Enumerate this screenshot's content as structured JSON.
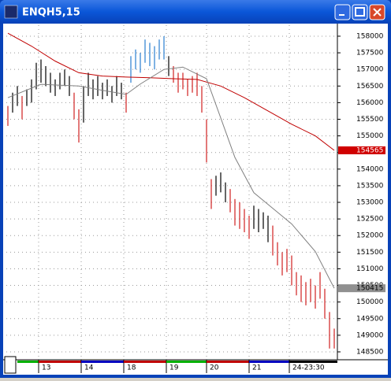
{
  "title": "ENQH5,15",
  "chart_data": {
    "type": "ohlc",
    "ylim": [
      148310,
      158260
    ],
    "yticks": [
      158000,
      157500,
      157000,
      156500,
      156000,
      155500,
      155000,
      154500,
      154000,
      153500,
      153000,
      152500,
      152000,
      151500,
      151000,
      150500,
      150000,
      149500,
      149000,
      148500
    ],
    "grid": true,
    "high": [
      155900,
      156300,
      156500,
      156200,
      156400,
      156700,
      157200,
      157300,
      157100,
      156900,
      156700,
      156900,
      157000,
      156800,
      156300,
      155800,
      156500,
      156900,
      156700,
      156800,
      156600,
      156700,
      156500,
      156800,
      156600,
      156300,
      157400,
      157600,
      157500,
      157900,
      157800,
      157700,
      157900,
      158000,
      157400,
      157100,
      156900,
      156900,
      156700,
      156800,
      156900,
      156500,
      155500,
      153700,
      153800,
      153900,
      153600,
      153400,
      153100,
      153000,
      152800,
      152600,
      152900,
      152800,
      152700,
      152600,
      152300,
      151800,
      151500,
      151600,
      151400,
      150900,
      150800,
      150600,
      150700,
      150500,
      150900,
      150400,
      149700,
      149200
    ],
    "low": [
      155300,
      155700,
      155900,
      155500,
      155900,
      156000,
      156400,
      156600,
      156500,
      156300,
      156200,
      156400,
      156500,
      156200,
      155500,
      154800,
      155400,
      156200,
      156100,
      156200,
      156100,
      156200,
      156000,
      156200,
      156100,
      155700,
      156600,
      157000,
      156900,
      157200,
      157100,
      157000,
      157300,
      157300,
      156800,
      156600,
      156300,
      156400,
      156200,
      156300,
      156200,
      155700,
      154200,
      152800,
      153200,
      153300,
      153000,
      152700,
      152300,
      152200,
      152100,
      151900,
      152200,
      152100,
      152200,
      151800,
      151400,
      151100,
      150800,
      150900,
      150500,
      150200,
      150000,
      149900,
      150000,
      149800,
      150100,
      149500,
      148600,
      148600
    ],
    "colors": [
      "#d02020",
      "#000000",
      "#000000",
      "#d02020",
      "#000000",
      "#000000",
      "#000000",
      "#000000",
      "#000000",
      "#000000",
      "#000000",
      "#000000",
      "#000000",
      "#000000",
      "#d02020",
      "#d02020",
      "#000000",
      "#000000",
      "#000000",
      "#000000",
      "#000000",
      "#000000",
      "#000000",
      "#000000",
      "#000000",
      "#d02020",
      "#2a7fd0",
      "#2a7fd0",
      "#2a7fd0",
      "#2a7fd0",
      "#2a7fd0",
      "#2a7fd0",
      "#2a7fd0",
      "#2a7fd0",
      "#000000",
      "#d02020",
      "#d02020",
      "#d02020",
      "#d02020",
      "#d02020",
      "#d02020",
      "#d02020",
      "#d02020",
      "#d02020",
      "#000000",
      "#000000",
      "#000000",
      "#d02020",
      "#d02020",
      "#d02020",
      "#d02020",
      "#d02020",
      "#000000",
      "#000000",
      "#000000",
      "#000000",
      "#d02020",
      "#d02020",
      "#d02020",
      "#d02020",
      "#d02020",
      "#d02020",
      "#d02020",
      "#d02020",
      "#d02020",
      "#d02020",
      "#d02020",
      "#d02020",
      "#d02020",
      "#d02020"
    ],
    "averages": [
      {
        "color": "#c00000",
        "x": [
          0,
          5,
          10,
          15,
          20,
          25,
          30,
          35,
          40,
          45,
          50,
          55,
          60,
          65,
          69
        ],
        "values": [
          158090,
          157700,
          157250,
          156900,
          156800,
          156770,
          156750,
          156720,
          156700,
          156500,
          156150,
          155750,
          155350,
          155000,
          154565
        ]
      },
      {
        "color": "#808080",
        "x": [
          0,
          7,
          15,
          20,
          25,
          28,
          33,
          37,
          42,
          45,
          48,
          52,
          56,
          60,
          65,
          69
        ],
        "values": [
          156150,
          156550,
          156500,
          156370,
          156250,
          156560,
          157000,
          157070,
          156720,
          155540,
          154350,
          153290,
          152820,
          152350,
          151520,
          150415
        ]
      }
    ],
    "price_tags": [
      {
        "value": 154565,
        "background": "#d00000",
        "color": "#ffffff"
      },
      {
        "value": 150415,
        "background": "#909090",
        "color": "#000000"
      }
    ],
    "sessions": [
      {
        "label": "13",
        "at": 6.5
      },
      {
        "label": "14",
        "at": 15.5
      },
      {
        "label": "18",
        "at": 24.5
      },
      {
        "label": "19",
        "at": 33.5
      },
      {
        "label": "20",
        "at": 42
      },
      {
        "label": "21",
        "at": 51
      },
      {
        "label": "24-23:30",
        "at": 59.5
      }
    ],
    "session_colors": [
      "#00b000",
      "#c00000",
      "#0000c0",
      "#c00000",
      "#00b000",
      "#c00000",
      "#0000c0",
      "#000000"
    ]
  }
}
